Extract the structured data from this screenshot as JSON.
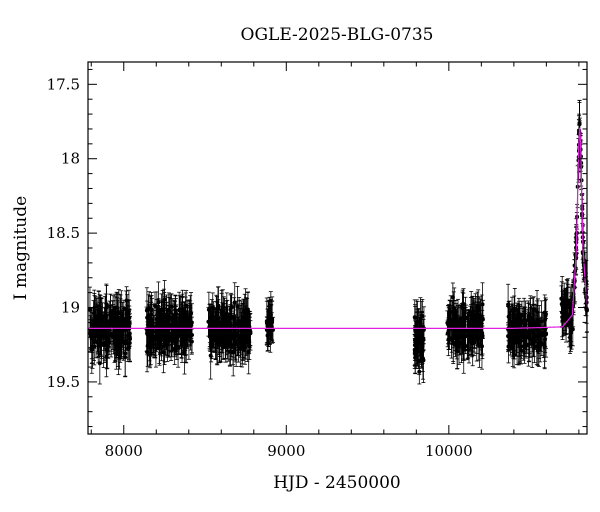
{
  "chart_data": {
    "type": "scatter",
    "title": "OGLE-2025-BLG-0735",
    "xlabel": "HJD - 2450000",
    "ylabel": "I magnitude",
    "xlim": [
      7780,
      10850
    ],
    "ylim": [
      19.85,
      17.35
    ],
    "y_inverted": true,
    "x_ticks": [
      8000,
      9000,
      10000
    ],
    "y_ticks": [
      17.5,
      18,
      18.5,
      19,
      19.5
    ],
    "x_tick_labels": [
      "8000",
      "9000",
      "10000"
    ],
    "y_tick_labels": [
      "17.5",
      "18",
      "18.5",
      "19",
      "19.5"
    ],
    "grid": false,
    "legend": "none",
    "colors": {
      "data": "#000000",
      "model": "#e020e0"
    },
    "baseline_mag": 19.14,
    "peak": {
      "t": 10805,
      "mag": 17.77
    },
    "seasons": [
      {
        "start": 7790,
        "end": 8040,
        "mean": 19.15,
        "scatter": 0.12,
        "n": 200
      },
      {
        "start": 8140,
        "end": 8420,
        "mean": 19.13,
        "scatter": 0.12,
        "n": 220
      },
      {
        "start": 8520,
        "end": 8780,
        "mean": 19.15,
        "scatter": 0.12,
        "n": 200
      },
      {
        "start": 8880,
        "end": 8920,
        "mean": 19.12,
        "scatter": 0.07,
        "n": 30
      },
      {
        "start": 9790,
        "end": 9850,
        "mean": 19.2,
        "scatter": 0.15,
        "n": 60
      },
      {
        "start": 9990,
        "end": 10210,
        "mean": 19.14,
        "scatter": 0.11,
        "n": 150
      },
      {
        "start": 10360,
        "end": 10600,
        "mean": 19.16,
        "scatter": 0.11,
        "n": 150
      },
      {
        "start": 10690,
        "end": 10850,
        "mean": 19.0,
        "scatter": 0.08,
        "n": 120
      }
    ],
    "model": {
      "t0": 10805,
      "baseline": 19.14,
      "samples": [
        {
          "t": 7780,
          "mag": 19.14
        },
        {
          "t": 10400,
          "mag": 19.14
        },
        {
          "t": 10700,
          "mag": 19.13
        },
        {
          "t": 10760,
          "mag": 19.05
        },
        {
          "t": 10785,
          "mag": 18.6
        },
        {
          "t": 10798,
          "mag": 17.95
        },
        {
          "t": 10805,
          "mag": 17.77
        },
        {
          "t": 10812,
          "mag": 17.95
        },
        {
          "t": 10825,
          "mag": 18.6
        },
        {
          "t": 10850,
          "mag": 19.0
        }
      ]
    }
  }
}
